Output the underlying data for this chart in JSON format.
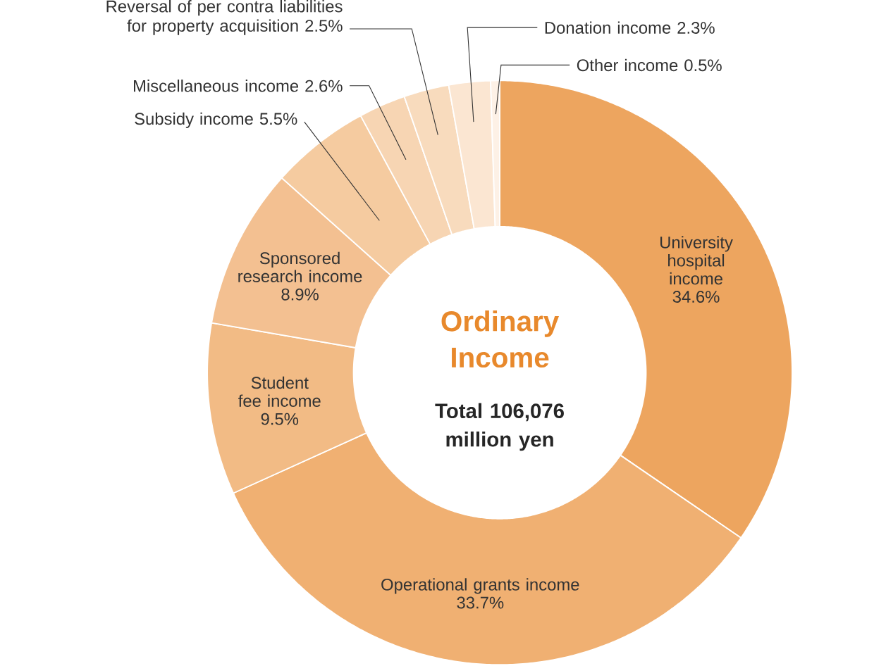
{
  "chart_data": {
    "type": "donut",
    "title": "Ordinary Income",
    "subtitle": "Total 106,076 million yen",
    "categories": [
      "University hospital income",
      "Operational grants income",
      "Student fee income",
      "Sponsored research income",
      "Subsidy income",
      "Miscellaneous income",
      "Reversal of per contra liabilities for property acquisition",
      "Donation income",
      "Other income"
    ],
    "values": [
      34.6,
      33.7,
      9.5,
      8.9,
      5.5,
      2.6,
      2.5,
      2.3,
      0.5
    ],
    "value_labels": [
      "34.6%",
      "33.7%",
      "9.5%",
      "8.9%",
      "5.5%",
      "2.6%",
      "2.5%",
      "2.3%",
      "0.5%"
    ],
    "colors": [
      "#eda55f",
      "#f0b072",
      "#f2bb85",
      "#f3c091",
      "#f5cba0",
      "#f7d5b3",
      "#f8dbbd",
      "#fbe6d2",
      "#fdf1e6"
    ]
  }
}
